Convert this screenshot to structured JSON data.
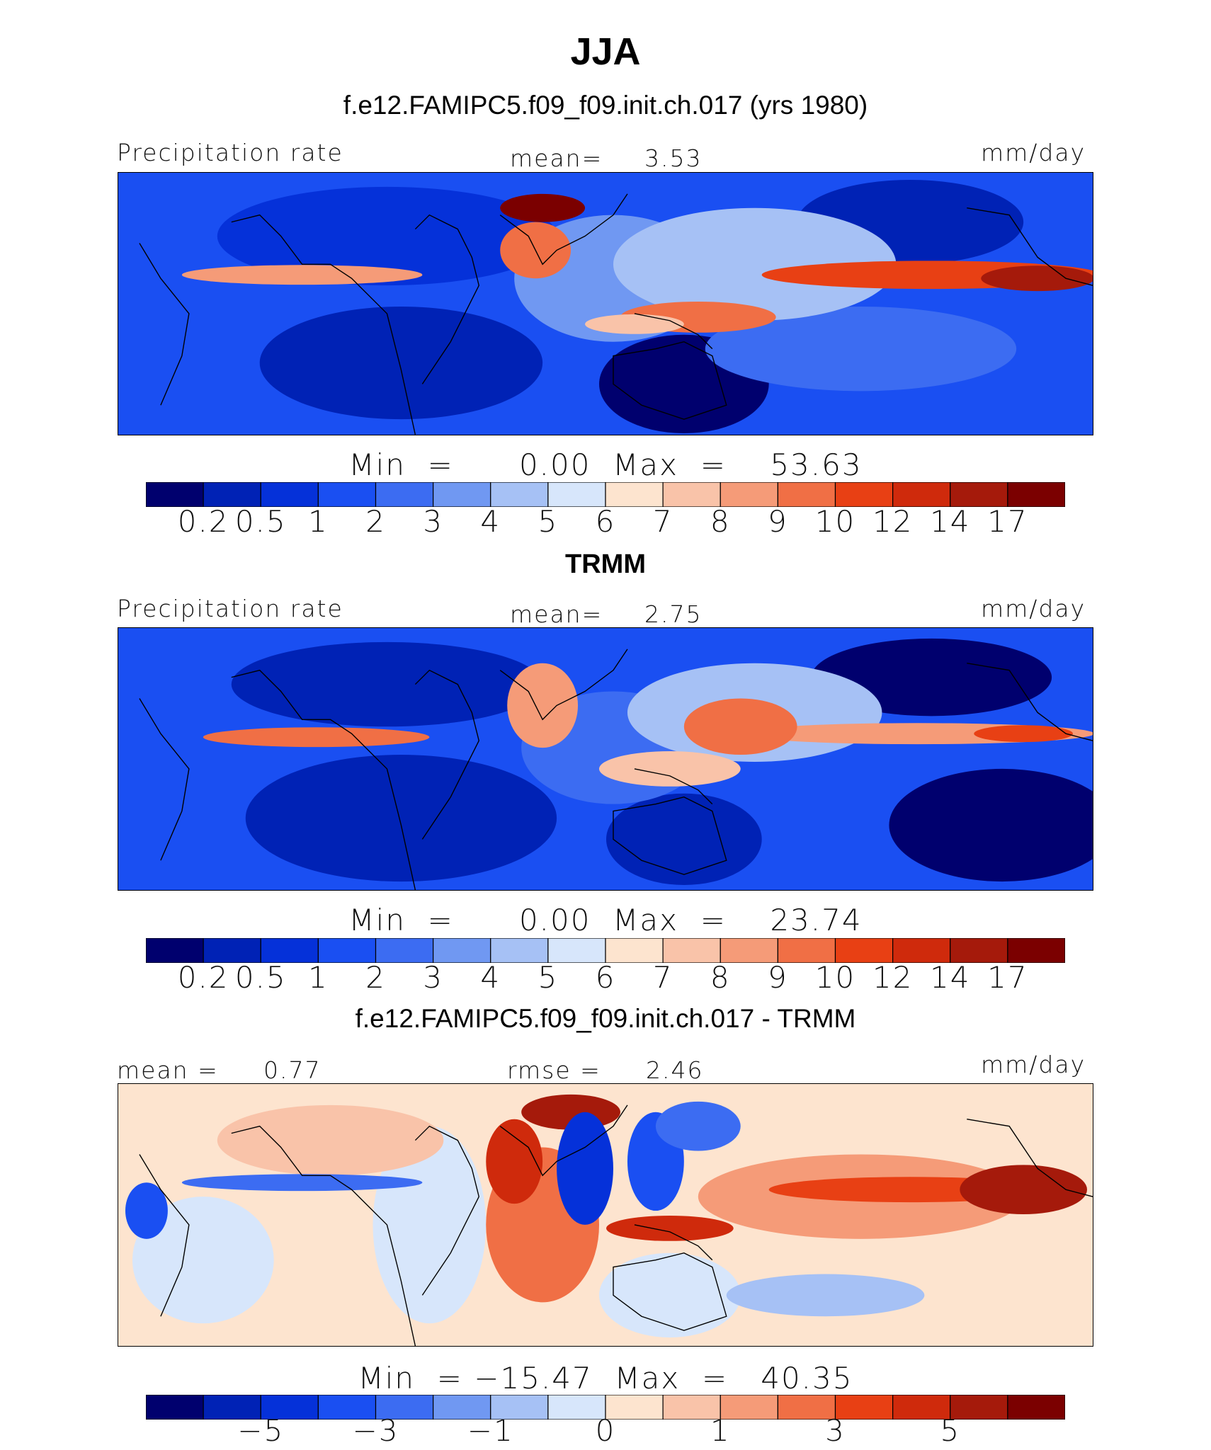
{
  "header": {
    "title": "JJA",
    "subtitle": "f.e12.FAMIPC5.f09_f09.init.ch.017 (yrs 1980)"
  },
  "colors": {
    "abs_scale": [
      "#00006e",
      "#0022b5",
      "#0531d9",
      "#1a4ff2",
      "#3c6cf2",
      "#7098f2",
      "#a6c1f5",
      "#d7e6fb",
      "#fde4cf",
      "#f9c3a9",
      "#f59b78",
      "#f06f45",
      "#e84014",
      "#cf2a0c",
      "#a51a0b",
      "#7b0000"
    ],
    "diff_scale": [
      "#00006e",
      "#0022b5",
      "#0531d9",
      "#1a4ff2",
      "#3c6cf2",
      "#7098f2",
      "#a6c1f5",
      "#d7e6fb",
      "#fde4cf",
      "#f9c3a9",
      "#f59b78",
      "#f06f45",
      "#e84014",
      "#cf2a0c",
      "#a51a0b",
      "#7b0000"
    ]
  },
  "chart_data": [
    {
      "type": "heatmap",
      "title": "f.e12.FAMIPC5.f09_f09.init.ch.017 (yrs 1980)",
      "left_label": "Precipitation rate",
      "center_label": "mean=",
      "center_value": "3.53",
      "right_label": "mm/day",
      "min_label": "Min  =",
      "min_value": "0.00",
      "max_label": "Max  =",
      "max_value": "53.63",
      "colorbar_ticks": [
        "0.2",
        "0.5",
        "1",
        "2",
        "3",
        "4",
        "5",
        "6",
        "7",
        "8",
        "9",
        "10",
        "12",
        "14",
        "17"
      ],
      "units": "mm/day"
    },
    {
      "type": "heatmap",
      "title": "TRMM",
      "left_label": "Precipitation rate",
      "center_label": "mean=",
      "center_value": "2.75",
      "right_label": "mm/day",
      "min_label": "Min  =",
      "min_value": "0.00",
      "max_label": "Max  =",
      "max_value": "23.74",
      "colorbar_ticks": [
        "0.2",
        "0.5",
        "1",
        "2",
        "3",
        "4",
        "5",
        "6",
        "7",
        "8",
        "9",
        "10",
        "12",
        "14",
        "17"
      ],
      "units": "mm/day"
    },
    {
      "type": "heatmap",
      "title": "f.e12.FAMIPC5.f09_f09.init.ch.017 - TRMM",
      "left_label": "mean =",
      "left_value": "0.77",
      "center_label": "rmse =",
      "center_value": "2.46",
      "right_label": "mm/day",
      "min_label": "Min  =",
      "min_value": "−15.47",
      "max_label": "Max  =",
      "max_value": "40.35",
      "colorbar_ticks": [
        "−5",
        "−3",
        "−1",
        "0",
        "1",
        "3",
        "5"
      ],
      "units": "mm/day"
    }
  ]
}
